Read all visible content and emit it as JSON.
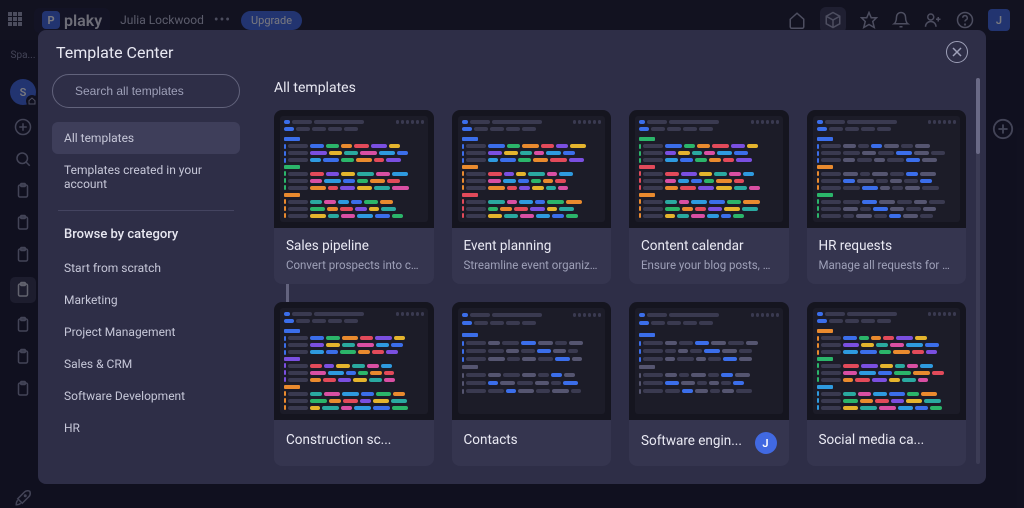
{
  "colors": {
    "accent": "#4169e1",
    "bg_app": "#1a1a2e",
    "bg_modal": "#2e2e47",
    "bg_card": "#35354f",
    "text_primary": "#e8e8f2",
    "text_secondary": "#9ea0b8"
  },
  "topbar": {
    "logo_text": "plaky",
    "logo_initial": "P",
    "username": "Julia Lockwood",
    "upgrade_label": "Upgrade",
    "avatar_initial": "J"
  },
  "leftRail": {
    "label": "Spa...",
    "badge_initial": "S"
  },
  "modal": {
    "title": "Template Center",
    "search_placeholder": "Search all templates",
    "main_heading": "All templates"
  },
  "sidebar": {
    "items_top": [
      {
        "label": "All templates",
        "active": true
      },
      {
        "label": "Templates created in your account",
        "active": false
      }
    ],
    "browse_heading": "Browse by category",
    "categories": [
      "Start from scratch",
      "Marketing",
      "Project Management",
      "Sales & CRM",
      "Software Development",
      "HR"
    ]
  },
  "thumb_palette": {
    "blue": "#3b6eea",
    "green": "#2bb56a",
    "orange": "#e98a2e",
    "red": "#e24a5a",
    "purple": "#7a4fe0",
    "teal": "#2aa9a0",
    "yellow": "#e4b42d",
    "pink": "#d94fa3",
    "grey": "#555570",
    "darkgrey": "#3a3a50",
    "cyan": "#2e9adf"
  },
  "templates": [
    {
      "title": "Sales pipeline",
      "desc": "Convert prospects into cust...",
      "style": "colorful",
      "section_colors": [
        "#3b6eea",
        "#2bb56a",
        "#e98a2e"
      ]
    },
    {
      "title": "Event planning",
      "desc": "Streamline event organizati...",
      "style": "colorful",
      "section_colors": [
        "#3b6eea",
        "#e98a2e",
        "#e24a5a"
      ]
    },
    {
      "title": "Content calendar",
      "desc": "Ensure your blog posts, pub...",
      "style": "colorful",
      "section_colors": [
        "#2bb56a",
        "#e24a5a",
        "#e98a2e"
      ]
    },
    {
      "title": "HR requests",
      "desc": "Manage all requests for a v...",
      "style": "muted",
      "section_colors": [
        "#3b6eea",
        "#e98a2e",
        "#2bb56a"
      ]
    },
    {
      "title": "Construction sc...",
      "desc": "",
      "style": "colorful",
      "section_colors": [
        "#3b6eea",
        "#7a4fe0",
        "#e98a2e"
      ]
    },
    {
      "title": "Contacts",
      "desc": "",
      "style": "muted",
      "section_colors": [
        "#3b6eea",
        "#555570"
      ]
    },
    {
      "title": "Software engin...",
      "desc": "",
      "style": "muted",
      "owner_initial": "J",
      "section_colors": [
        "#3b6eea",
        "#555570"
      ]
    },
    {
      "title": "Social media ca...",
      "desc": "",
      "style": "colorful",
      "section_colors": [
        "#e98a2e",
        "#2bb56a",
        "#2e9adf"
      ]
    }
  ]
}
